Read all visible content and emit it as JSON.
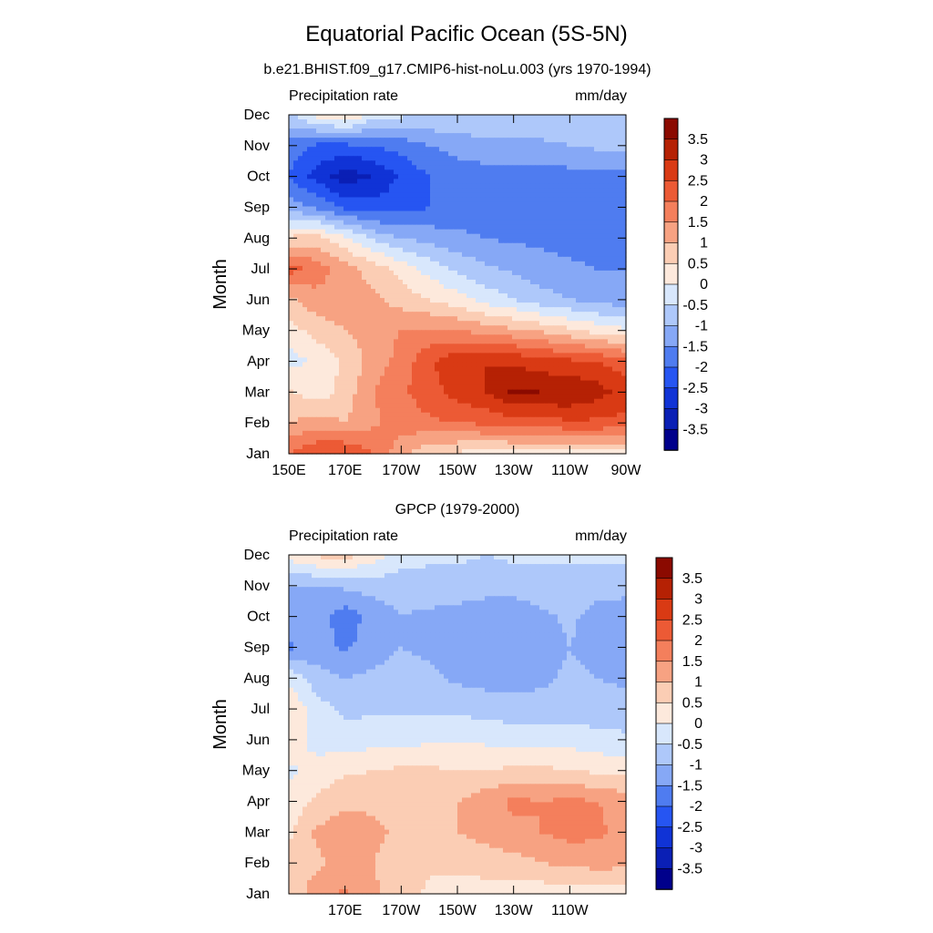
{
  "page": {
    "title": "Equatorial Pacific Ocean (5S-5N)"
  },
  "colors": {
    "levels": [
      -3.5,
      -3,
      -2.5,
      -2,
      -1.5,
      -1,
      -0.5,
      0,
      0.5,
      1,
      1.5,
      2,
      2.5,
      3,
      3.5
    ],
    "palette": [
      "#00008B",
      "#0A1FB5",
      "#1033D6",
      "#2655F2",
      "#4F7CF0",
      "#86A8F6",
      "#AEC8FA",
      "#D8E7FC",
      "#FDE9DC",
      "#FBCDB4",
      "#F7A282",
      "#F47F5C",
      "#EC5A35",
      "#D93A14",
      "#B52104",
      "#8B0A00"
    ]
  },
  "chart_data": [
    {
      "type": "heatmap",
      "title": "b.e21.BHIST.f09_g17.CMIP6-hist-noLu.003 (yrs 1970-1994)",
      "left_label": "Precipitation rate",
      "right_label": "mm/day",
      "ylabel": "Month",
      "xlabel": "",
      "x_ticks": [
        "150E",
        "170E",
        "170W",
        "150W",
        "130W",
        "110W",
        "90W"
      ],
      "x_tick_lon": [
        150,
        170,
        190,
        210,
        230,
        250,
        270
      ],
      "xlim_lon": [
        150,
        270
      ],
      "y_ticks": [
        "Jan",
        "Feb",
        "Mar",
        "Apr",
        "May",
        "Jun",
        "Jul",
        "Aug",
        "Sep",
        "Oct",
        "Nov",
        "Dec"
      ],
      "colorbar": {
        "labels": [
          "3.5",
          "3",
          "2.5",
          "2",
          "1.5",
          "1",
          "0.5",
          "0",
          "-0.5",
          "-1",
          "-1.5",
          "-2",
          "-2.5",
          "-3",
          "-3.5"
        ]
      },
      "x": [
        150,
        160,
        170,
        180,
        190,
        200,
        210,
        220,
        230,
        240,
        250,
        260,
        270
      ],
      "y": [
        "Jan",
        "Feb",
        "Mar",
        "Apr",
        "May",
        "Jun",
        "Jul",
        "Aug",
        "Sep",
        "Oct",
        "Nov",
        "Dec"
      ],
      "z": [
        [
          2.0,
          2.5,
          2.6,
          2.0,
          1.2,
          0.6,
          0.4,
          0.3,
          0.3,
          0.3,
          0.3,
          0.3,
          0.3
        ],
        [
          1.0,
          1.2,
          1.0,
          1.4,
          1.7,
          1.9,
          2.0,
          2.1,
          2.2,
          2.3,
          2.4,
          2.4,
          2.3
        ],
        [
          0.6,
          0.2,
          0.7,
          1.5,
          1.9,
          2.3,
          2.7,
          3.0,
          3.6,
          3.5,
          3.5,
          3.2,
          2.8
        ],
        [
          -0.2,
          0.1,
          0.6,
          1.2,
          1.7,
          2.4,
          2.9,
          3.0,
          2.9,
          2.7,
          2.6,
          2.5,
          2.2
        ],
        [
          0.3,
          0.7,
          1.0,
          1.2,
          1.5,
          1.6,
          1.5,
          1.3,
          1.1,
          0.9,
          0.6,
          0.3,
          0.1
        ],
        [
          0.9,
          1.3,
          1.3,
          1.1,
          0.8,
          0.5,
          0.2,
          -0.2,
          -0.5,
          -0.8,
          -1.0,
          -1.2,
          -1.3
        ],
        [
          2.2,
          1.8,
          1.2,
          0.8,
          0.3,
          -0.2,
          -0.6,
          -0.9,
          -1.1,
          -1.3,
          -1.4,
          -1.5,
          -1.5
        ],
        [
          0.6,
          0.7,
          0.1,
          -0.6,
          -1.0,
          -1.2,
          -1.4,
          -1.5,
          -1.6,
          -1.6,
          -1.7,
          -1.8,
          -2.0
        ],
        [
          -1.2,
          -1.6,
          -2.1,
          -2.3,
          -2.2,
          -2.0,
          -1.8,
          -1.7,
          -1.7,
          -1.7,
          -1.7,
          -1.7,
          -1.8
        ],
        [
          -2.0,
          -2.7,
          -3.3,
          -3.0,
          -2.4,
          -2.0,
          -1.8,
          -1.7,
          -1.7,
          -1.7,
          -1.7,
          -1.7,
          -1.7
        ],
        [
          -1.7,
          -2.1,
          -2.1,
          -2.0,
          -1.8,
          -1.5,
          -1.3,
          -1.2,
          -1.2,
          -1.1,
          -1.0,
          -0.9,
          -0.9
        ],
        [
          -0.6,
          0.2,
          0.6,
          -0.2,
          -0.4,
          -0.5,
          -0.5,
          -0.5,
          -0.6,
          -0.6,
          -0.6,
          -0.5,
          -0.5
        ]
      ]
    },
    {
      "type": "heatmap",
      "title": "GPCP (1979-2000)",
      "left_label": "Precipitation rate",
      "right_label": "mm/day",
      "ylabel": "Month",
      "xlabel": "",
      "x_ticks": [
        "170E",
        "170W",
        "150W",
        "130W",
        "110W"
      ],
      "x_tick_lon": [
        170,
        190,
        210,
        230,
        250
      ],
      "xlim_lon": [
        150,
        270
      ],
      "y_ticks": [
        "Jan",
        "Feb",
        "Mar",
        "Apr",
        "May",
        "Jun",
        "Jul",
        "Aug",
        "Sep",
        "Oct",
        "Nov",
        "Dec"
      ],
      "colorbar": {
        "labels": [
          "3.5",
          "3",
          "2.5",
          "2",
          "1.5",
          "1",
          "0.5",
          "0",
          "-0.5",
          "-1",
          "-1.5",
          "-2",
          "-2.5",
          "-3",
          "-3.5"
        ]
      },
      "x": [
        150,
        160,
        170,
        180,
        190,
        200,
        210,
        220,
        230,
        240,
        250,
        260,
        270
      ],
      "y": [
        "Jan",
        "Feb",
        "Mar",
        "Apr",
        "May",
        "Jun",
        "Jul",
        "Aug",
        "Sep",
        "Oct",
        "Nov",
        "Dec"
      ],
      "z": [
        [
          0.6,
          1.3,
          1.6,
          1.1,
          0.7,
          0.4,
          0.3,
          0.3,
          0.2,
          0.2,
          0.2,
          0.3,
          0.3
        ],
        [
          0.6,
          0.9,
          1.2,
          1.0,
          0.8,
          0.6,
          0.6,
          0.7,
          0.8,
          1.0,
          1.1,
          1.2,
          1.1
        ],
        [
          0.4,
          1.1,
          1.3,
          1.1,
          0.9,
          0.9,
          1.0,
          1.2,
          1.4,
          1.5,
          1.7,
          1.6,
          1.3
        ],
        [
          0.2,
          0.6,
          0.9,
          0.9,
          0.8,
          0.7,
          1.0,
          1.3,
          1.6,
          1.5,
          1.6,
          1.5,
          1.3
        ],
        [
          -0.1,
          0.2,
          0.4,
          0.5,
          0.6,
          0.6,
          0.5,
          0.5,
          0.6,
          0.6,
          0.5,
          0.4,
          0.3
        ],
        [
          0.3,
          -0.2,
          -0.3,
          -0.2,
          -0.2,
          -0.1,
          -0.1,
          -0.1,
          -0.2,
          -0.2,
          -0.2,
          -0.3,
          -0.4
        ],
        [
          0.5,
          -0.3,
          -0.6,
          -0.6,
          -0.6,
          -0.6,
          -0.6,
          -0.7,
          -0.8,
          -0.8,
          -0.8,
          -0.8,
          -0.8
        ],
        [
          -0.1,
          -0.8,
          -1.0,
          -0.9,
          -0.8,
          -0.9,
          -1.1,
          -1.2,
          -1.2,
          -1.1,
          -0.9,
          -1.0,
          -1.1
        ],
        [
          -1.6,
          -1.3,
          -1.6,
          -1.2,
          -1.0,
          -1.1,
          -1.3,
          -1.4,
          -1.4,
          -1.3,
          -1.0,
          -1.2,
          -1.3
        ],
        [
          -1.1,
          -1.2,
          -1.8,
          -1.3,
          -1.0,
          -1.1,
          -1.2,
          -1.3,
          -1.3,
          -1.1,
          -0.9,
          -1.2,
          -1.3
        ],
        [
          -1.0,
          -1.0,
          -0.9,
          -0.8,
          -0.8,
          -0.7,
          -0.7,
          -0.8,
          -0.8,
          -0.7,
          -0.7,
          -0.8,
          -0.8
        ],
        [
          0.2,
          0.6,
          0.7,
          0.3,
          -0.2,
          -0.4,
          -0.4,
          -0.5,
          -0.4,
          -0.4,
          -0.4,
          -0.4,
          -0.4
        ]
      ]
    }
  ]
}
